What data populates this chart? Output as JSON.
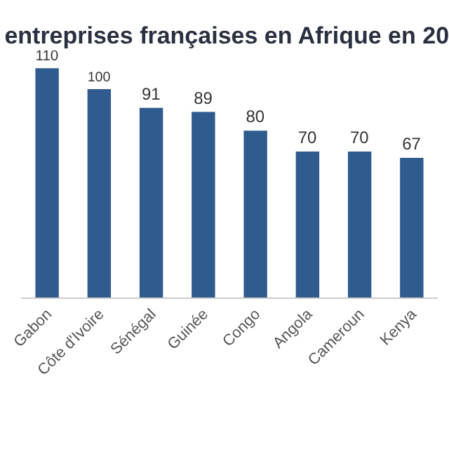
{
  "chart_data": {
    "type": "bar",
    "title": "entreprises françaises en Afrique en 20",
    "categories": [
      "Gabon",
      "Côte d'Ivoire",
      "Sénégal",
      "Guinée",
      "Congo",
      "Angola",
      "Cameroun",
      "Kenya"
    ],
    "values": [
      110,
      100,
      91,
      89,
      80,
      70,
      70,
      67
    ],
    "color": "#2f5b8f",
    "data_labels": true
  }
}
